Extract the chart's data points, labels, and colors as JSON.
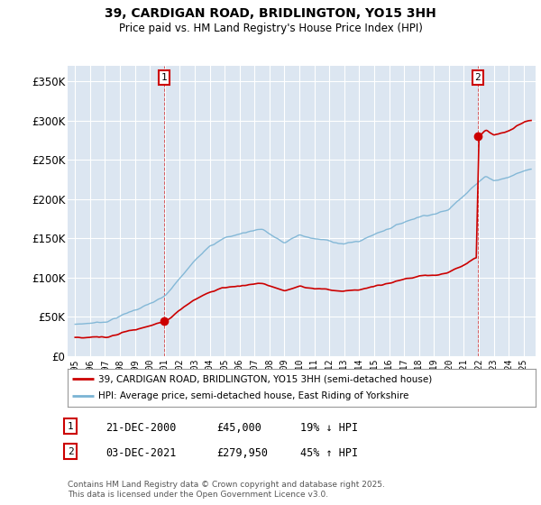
{
  "title": "39, CARDIGAN ROAD, BRIDLINGTON, YO15 3HH",
  "subtitle": "Price paid vs. HM Land Registry's House Price Index (HPI)",
  "ylim": [
    0,
    370000
  ],
  "yticks": [
    0,
    50000,
    100000,
    150000,
    200000,
    250000,
    300000,
    350000
  ],
  "ytick_labels": [
    "£0",
    "£50K",
    "£100K",
    "£150K",
    "£200K",
    "£250K",
    "£300K",
    "£350K"
  ],
  "bg_color": "#dce6f1",
  "grid_color": "#ffffff",
  "t1_year": 2000.97,
  "t1_price": 45000,
  "t2_year": 2021.92,
  "t2_price": 279950,
  "legend_label_red": "39, CARDIGAN ROAD, BRIDLINGTON, YO15 3HH (semi-detached house)",
  "legend_label_blue": "HPI: Average price, semi-detached house, East Riding of Yorkshire",
  "ann1_date": "21-DEC-2000",
  "ann1_price": "£45,000",
  "ann1_hpi": "19% ↓ HPI",
  "ann2_date": "03-DEC-2021",
  "ann2_price": "£279,950",
  "ann2_hpi": "45% ↑ HPI",
  "footer": "Contains HM Land Registry data © Crown copyright and database right 2025.\nThis data is licensed under the Open Government Licence v3.0.",
  "red_color": "#cc0000",
  "blue_color": "#7ab3d4",
  "xlim_left": 1994.5,
  "xlim_right": 2025.8
}
